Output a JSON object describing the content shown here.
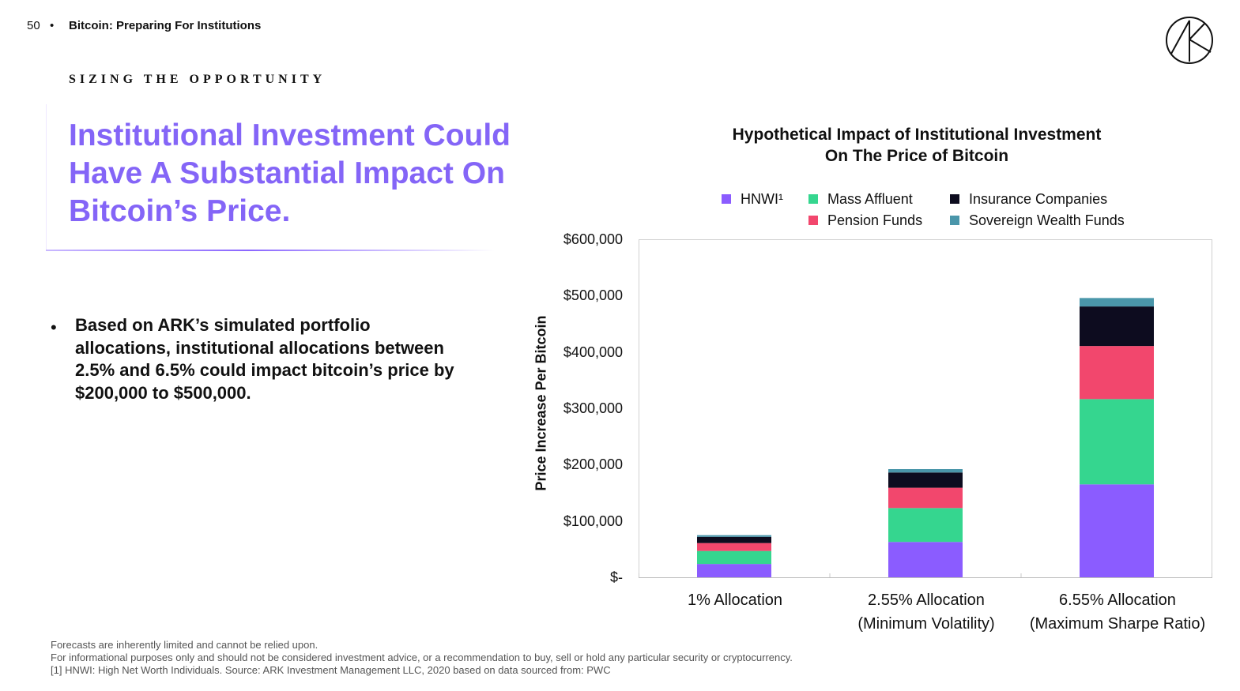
{
  "header": {
    "page_number": "50",
    "separator": "•",
    "deck_title": "Bitcoin: Preparing For Institutions",
    "logo_icon": "ark-logo-icon"
  },
  "eyebrow": "SIZING THE OPPORTUNITY",
  "headline": "Institutional Investment Could Have A Substantial Impact On Bitcoin’s Price.",
  "bullet": {
    "marker": "•",
    "text": "Based on ARK’s simulated portfolio allocations, institutional allocations between 2.5% and 6.5% could impact bitcoin’s price by $200,000 to $500,000."
  },
  "footnotes": [
    "Forecasts are inherently limited and cannot be relied upon.",
    "For informational purposes only and should not be considered investment advice, or a recommendation to buy, sell or hold any particular security or cryptocurrency.",
    "[1] HNWI: High Net Worth Individuals. Source: ARK Investment Management LLC, 2020 based on data sourced from: PWC"
  ],
  "colors": {
    "accent": "#8465f7",
    "hnwi": "#8b5cff",
    "mass_affluent": "#35d68f",
    "pension_funds": "#f2476d",
    "insurance": "#0d0c1f",
    "sovereign": "#4a96aa"
  },
  "chart_data": {
    "type": "bar",
    "stacked": true,
    "title_line1": "Hypothetical Impact of Institutional Investment",
    "title_line2": "On The Price of Bitcoin",
    "ylabel": "Price Increase Per Bitcoin",
    "ylim": [
      0,
      600000
    ],
    "yticks": [
      "$-",
      "$100,000",
      "$200,000",
      "$300,000",
      "$400,000",
      "$500,000",
      "$600,000"
    ],
    "categories": [
      [
        "1% Allocation",
        ""
      ],
      [
        "2.55% Allocation",
        "(Minimum Volatility)"
      ],
      [
        "6.55% Allocation",
        "(Maximum Sharpe Ratio)"
      ]
    ],
    "legend_position": "top",
    "series": [
      {
        "name": "HNWI¹",
        "color": "#8b5cff",
        "values": [
          25000,
          64000,
          166000
        ]
      },
      {
        "name": "Mass Affluent",
        "color": "#35d68f",
        "values": [
          23000,
          60000,
          151000
        ]
      },
      {
        "name": "Pension Funds",
        "color": "#f2476d",
        "values": [
          14000,
          36000,
          94000
        ]
      },
      {
        "name": "Insurance Companies",
        "color": "#0d0c1f",
        "values": [
          11000,
          27000,
          70000
        ]
      },
      {
        "name": "Sovereign Wealth Funds",
        "color": "#4a96aa",
        "values": [
          3000,
          6000,
          15000
        ]
      }
    ]
  }
}
